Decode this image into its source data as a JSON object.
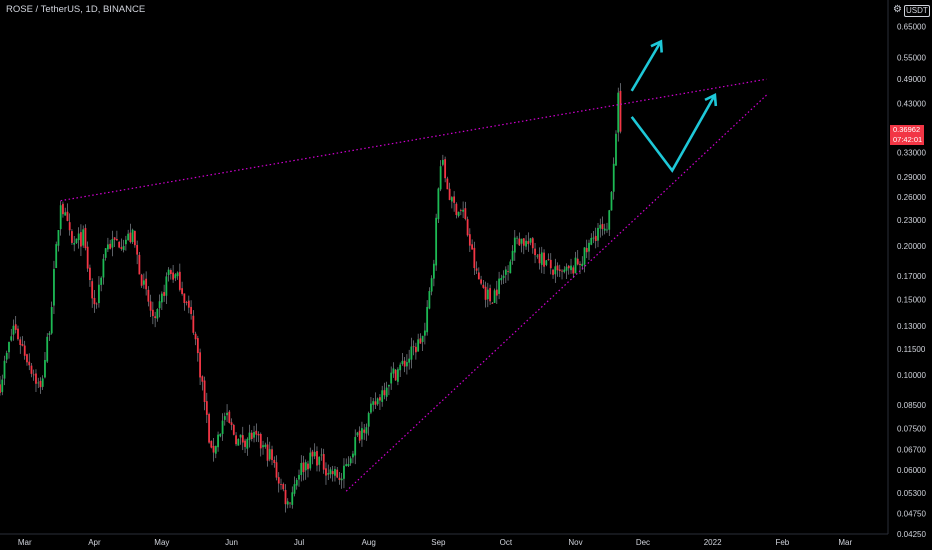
{
  "header": {
    "title": "ROSE / TetherUS, 1D, BINANCE"
  },
  "axis": {
    "currency": "USDT",
    "settings_icon": "gear-icon",
    "y_ticks": [
      "0.65000",
      "0.55000",
      "0.49000",
      "0.43000",
      "0.33000",
      "0.29000",
      "0.26000",
      "0.23000",
      "0.20000",
      "0.17000",
      "0.15000",
      "0.13000",
      "0.11500",
      "0.10000",
      "0.08500",
      "0.07500",
      "0.06700",
      "0.06000",
      "0.05300",
      "0.04750",
      "0.04250"
    ],
    "x_ticks": [
      "Mar",
      "Apr",
      "May",
      "Jun",
      "Jul",
      "Aug",
      "Sep",
      "Oct",
      "Nov",
      "Dec",
      "2022",
      "Feb",
      "Mar"
    ]
  },
  "price_badge": {
    "price": "0.36962",
    "countdown": "07:42:01",
    "color": "#f23645"
  },
  "colors": {
    "up": "#26a69a",
    "up_candle": "#1db954",
    "down": "#f23645",
    "trendline": "#d100d1",
    "arrow": "#1ec8d8",
    "background": "#000000"
  },
  "chart_data": {
    "type": "candlestick",
    "symbol": "ROSE / TetherUS",
    "interval": "1D",
    "exchange": "BINANCE",
    "y_scale": "log",
    "ylim": [
      0.0425,
      0.75
    ],
    "xlim": [
      "2021-02-18",
      "2022-03-20"
    ],
    "last_price": 0.36962,
    "close_series": [
      {
        "date": "2021-02-18",
        "close": 0.095
      },
      {
        "date": "2021-02-24",
        "close": 0.13
      },
      {
        "date": "2021-03-02",
        "close": 0.11
      },
      {
        "date": "2021-03-08",
        "close": 0.092
      },
      {
        "date": "2021-03-12",
        "close": 0.13
      },
      {
        "date": "2021-03-17",
        "close": 0.255
      },
      {
        "date": "2021-03-22",
        "close": 0.2
      },
      {
        "date": "2021-03-27",
        "close": 0.21
      },
      {
        "date": "2021-04-01",
        "close": 0.14
      },
      {
        "date": "2021-04-06",
        "close": 0.2
      },
      {
        "date": "2021-04-12",
        "close": 0.205
      },
      {
        "date": "2021-04-18",
        "close": 0.21
      },
      {
        "date": "2021-04-23",
        "close": 0.16
      },
      {
        "date": "2021-04-28",
        "close": 0.13
      },
      {
        "date": "2021-05-04",
        "close": 0.175
      },
      {
        "date": "2021-05-09",
        "close": 0.165
      },
      {
        "date": "2021-05-15",
        "close": 0.13
      },
      {
        "date": "2021-05-19",
        "close": 0.095
      },
      {
        "date": "2021-05-23",
        "close": 0.065
      },
      {
        "date": "2021-05-29",
        "close": 0.08
      },
      {
        "date": "2021-06-04",
        "close": 0.07
      },
      {
        "date": "2021-06-10",
        "close": 0.072
      },
      {
        "date": "2021-06-18",
        "close": 0.065
      },
      {
        "date": "2021-06-26",
        "close": 0.05
      },
      {
        "date": "2021-07-01",
        "close": 0.06
      },
      {
        "date": "2021-07-08",
        "close": 0.065
      },
      {
        "date": "2021-07-14",
        "close": 0.06
      },
      {
        "date": "2021-07-20",
        "close": 0.057
      },
      {
        "date": "2021-07-26",
        "close": 0.07
      },
      {
        "date": "2021-08-02",
        "close": 0.082
      },
      {
        "date": "2021-08-10",
        "close": 0.098
      },
      {
        "date": "2021-08-18",
        "close": 0.108
      },
      {
        "date": "2021-08-26",
        "close": 0.125
      },
      {
        "date": "2021-08-30",
        "close": 0.19
      },
      {
        "date": "2021-09-02",
        "close": 0.32
      },
      {
        "date": "2021-09-07",
        "close": 0.25
      },
      {
        "date": "2021-09-12",
        "close": 0.24
      },
      {
        "date": "2021-09-18",
        "close": 0.17
      },
      {
        "date": "2021-09-24",
        "close": 0.15
      },
      {
        "date": "2021-09-30",
        "close": 0.17
      },
      {
        "date": "2021-10-06",
        "close": 0.21
      },
      {
        "date": "2021-10-12",
        "close": 0.2
      },
      {
        "date": "2021-10-18",
        "close": 0.185
      },
      {
        "date": "2021-10-24",
        "close": 0.17
      },
      {
        "date": "2021-10-30",
        "close": 0.175
      },
      {
        "date": "2021-11-05",
        "close": 0.19
      },
      {
        "date": "2021-11-11",
        "close": 0.22
      },
      {
        "date": "2021-11-15",
        "close": 0.21
      },
      {
        "date": "2021-11-18",
        "close": 0.32
      },
      {
        "date": "2021-11-20",
        "close": 0.44
      },
      {
        "date": "2021-11-21",
        "close": 0.36962
      }
    ],
    "annotations": [
      {
        "type": "trendline",
        "style": "dotted",
        "points": [
          {
            "date": "2021-03-17",
            "price": 0.255
          },
          {
            "date": "2022-01-25",
            "price": 0.49
          }
        ]
      },
      {
        "type": "trendline",
        "style": "dotted",
        "points": [
          {
            "date": "2021-07-22",
            "price": 0.0535
          },
          {
            "date": "2022-01-25",
            "price": 0.45
          }
        ]
      },
      {
        "type": "arrow",
        "points": [
          {
            "date": "2021-11-26",
            "price": 0.46
          },
          {
            "date": "2021-12-09",
            "price": 0.6
          }
        ]
      },
      {
        "type": "arrow",
        "points": [
          {
            "date": "2021-11-26",
            "price": 0.4
          },
          {
            "date": "2021-12-14",
            "price": 0.3
          },
          {
            "date": "2022-01-02",
            "price": 0.45
          }
        ]
      }
    ]
  }
}
